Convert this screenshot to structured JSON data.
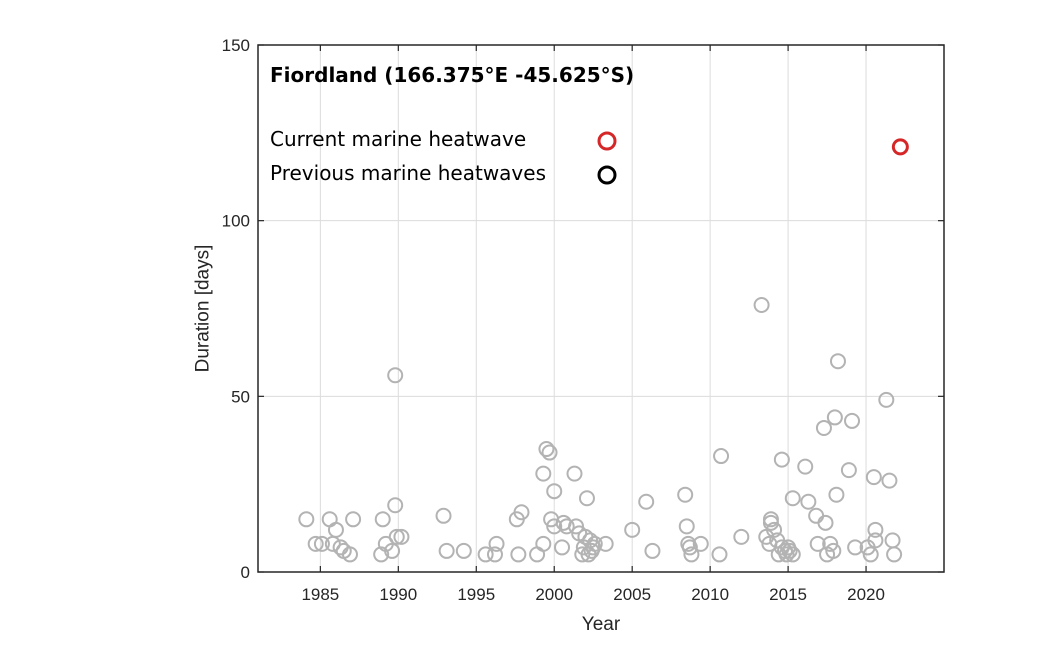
{
  "chart_data": {
    "type": "scatter",
    "title": "Fiordland (166.375°E -45.625°S)",
    "xlabel": "Year",
    "ylabel": "Duration [days]",
    "xlim": [
      1981,
      2025
    ],
    "ylim": [
      0,
      150
    ],
    "xticks": [
      1985,
      1990,
      1995,
      2000,
      2005,
      2010,
      2015,
      2020
    ],
    "yticks": [
      0,
      50,
      100,
      150
    ],
    "grid": true,
    "legend_position": "top-left",
    "series": [
      {
        "name": "Current marine heatwave",
        "color": "#d62728",
        "marker": "open-circle",
        "points": [
          [
            2022.2,
            121
          ]
        ]
      },
      {
        "name": "Previous marine heatwaves",
        "legend_color": "#000000",
        "color": "#b3b3b3",
        "marker": "open-circle",
        "points": [
          [
            1984.1,
            15
          ],
          [
            1984.7,
            8
          ],
          [
            1985.1,
            8
          ],
          [
            1985.6,
            15
          ],
          [
            1985.8,
            8
          ],
          [
            1986.0,
            12
          ],
          [
            1986.3,
            7
          ],
          [
            1986.5,
            6
          ],
          [
            1986.9,
            5
          ],
          [
            1987.1,
            15
          ],
          [
            1988.9,
            5
          ],
          [
            1989.0,
            15
          ],
          [
            1989.2,
            8
          ],
          [
            1989.6,
            6
          ],
          [
            1989.8,
            19
          ],
          [
            1989.8,
            56
          ],
          [
            1989.9,
            10
          ],
          [
            1990.2,
            10
          ],
          [
            1992.9,
            16
          ],
          [
            1993.1,
            6
          ],
          [
            1994.2,
            6
          ],
          [
            1995.6,
            5
          ],
          [
            1996.2,
            5
          ],
          [
            1996.3,
            8
          ],
          [
            1997.6,
            15
          ],
          [
            1997.7,
            5
          ],
          [
            1997.9,
            17
          ],
          [
            1998.9,
            5
          ],
          [
            1999.3,
            8
          ],
          [
            1999.3,
            28
          ],
          [
            1999.5,
            35
          ],
          [
            1999.7,
            34
          ],
          [
            1999.8,
            15
          ],
          [
            2000.0,
            13
          ],
          [
            2000.0,
            23
          ],
          [
            2000.5,
            7
          ],
          [
            2000.6,
            14
          ],
          [
            2000.8,
            13
          ],
          [
            2001.3,
            28
          ],
          [
            2001.4,
            13
          ],
          [
            2001.6,
            11
          ],
          [
            2001.8,
            5
          ],
          [
            2001.9,
            7
          ],
          [
            2002.0,
            10
          ],
          [
            2002.1,
            21
          ],
          [
            2002.2,
            5
          ],
          [
            2002.3,
            9
          ],
          [
            2002.4,
            6
          ],
          [
            2002.5,
            7
          ],
          [
            2002.6,
            8
          ],
          [
            2003.3,
            8
          ],
          [
            2005.0,
            12
          ],
          [
            2005.9,
            20
          ],
          [
            2006.3,
            6
          ],
          [
            2008.4,
            22
          ],
          [
            2008.5,
            13
          ],
          [
            2008.6,
            8
          ],
          [
            2008.7,
            7
          ],
          [
            2008.8,
            5
          ],
          [
            2009.4,
            8
          ],
          [
            2010.6,
            5
          ],
          [
            2010.7,
            33
          ],
          [
            2012.0,
            10
          ],
          [
            2013.3,
            76
          ],
          [
            2013.6,
            10
          ],
          [
            2013.8,
            8
          ],
          [
            2013.9,
            15
          ],
          [
            2013.9,
            14
          ],
          [
            2014.1,
            12
          ],
          [
            2014.3,
            9
          ],
          [
            2014.4,
            5
          ],
          [
            2014.6,
            32
          ],
          [
            2014.6,
            7
          ],
          [
            2014.8,
            6
          ],
          [
            2014.9,
            5
          ],
          [
            2015.0,
            7
          ],
          [
            2015.1,
            6
          ],
          [
            2015.3,
            5
          ],
          [
            2015.3,
            21
          ],
          [
            2016.1,
            30
          ],
          [
            2016.3,
            20
          ],
          [
            2016.8,
            16
          ],
          [
            2016.9,
            8
          ],
          [
            2017.3,
            41
          ],
          [
            2017.4,
            14
          ],
          [
            2017.5,
            5
          ],
          [
            2017.7,
            8
          ],
          [
            2017.9,
            6
          ],
          [
            2018.0,
            44
          ],
          [
            2018.1,
            22
          ],
          [
            2018.2,
            60
          ],
          [
            2018.9,
            29
          ],
          [
            2019.1,
            43
          ],
          [
            2019.3,
            7
          ],
          [
            2020.1,
            7
          ],
          [
            2020.3,
            5
          ],
          [
            2020.5,
            27
          ],
          [
            2020.6,
            9
          ],
          [
            2020.6,
            12
          ],
          [
            2021.3,
            49
          ],
          [
            2021.5,
            26
          ],
          [
            2021.7,
            9
          ],
          [
            2021.8,
            5
          ]
        ]
      }
    ]
  }
}
